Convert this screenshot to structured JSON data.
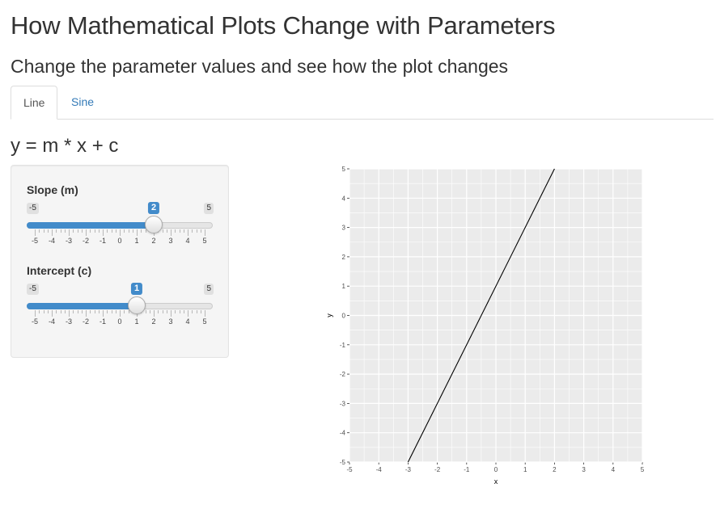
{
  "page": {
    "title": "How Mathematical Plots Change with Parameters",
    "subtitle": "Change the parameter values and see how the plot changes"
  },
  "tabs": [
    {
      "label": "Line",
      "active": true
    },
    {
      "label": "Sine",
      "active": false
    }
  ],
  "line_tab": {
    "equation": "y = m * x + c",
    "controls": {
      "slope": {
        "label": "Slope (m)",
        "min": -5,
        "max": 5,
        "value": 2,
        "min_label": "-5",
        "max_label": "5",
        "value_label": "2"
      },
      "intercept": {
        "label": "Intercept (c)",
        "min": -5,
        "max": 5,
        "value": 1,
        "min_label": "-5",
        "max_label": "5",
        "value_label": "1"
      }
    },
    "slider_tick_labels": [
      "-5",
      "-4",
      "-3",
      "-2",
      "-1",
      "0",
      "1",
      "2",
      "3",
      "4",
      "5"
    ]
  },
  "chart_data": {
    "type": "line",
    "xlabel": "x",
    "ylabel": "y",
    "xlim": [
      -5,
      5
    ],
    "ylim": [
      -5,
      5
    ],
    "x_ticks": [
      -5,
      -4,
      -3,
      -2,
      -1,
      0,
      1,
      2,
      3,
      4,
      5
    ],
    "y_ticks": [
      -5,
      -4,
      -3,
      -2,
      -1,
      0,
      1,
      2,
      3,
      4,
      5
    ],
    "grid": true,
    "series": [
      {
        "x": [
          -3,
          2
        ],
        "y": [
          -5,
          5
        ]
      }
    ],
    "colors": {
      "panel": "#ebebeb",
      "grid": "#ffffff",
      "line": "#000000"
    }
  },
  "colors": {
    "accent": "#428bca",
    "link": "#337ab7"
  }
}
